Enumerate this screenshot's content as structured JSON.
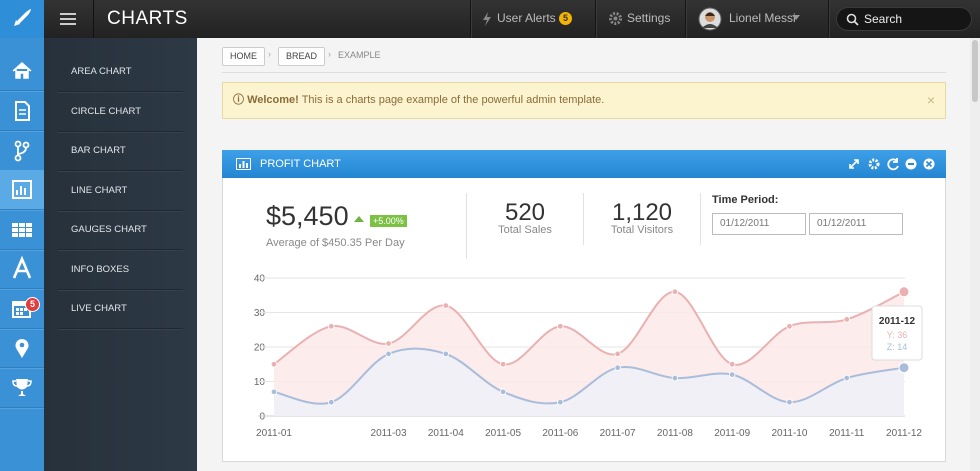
{
  "topbar": {
    "title": "CHARTS",
    "alerts": "User Alerts",
    "alerts_badge": "5",
    "settings": "Settings",
    "user": "Lionel Messi",
    "search": "Search"
  },
  "iconbar": {
    "calendar_badge": "5"
  },
  "sidebar": {
    "items": [
      "AREA CHART",
      "CIRCLE CHART",
      "BAR CHART",
      "LINE CHART",
      "GAUGES CHART",
      "INFO BOXES",
      "LIVE CHART"
    ]
  },
  "breadcrumb": [
    "HOME",
    "BREAD",
    "EXAMPLE"
  ],
  "alert": {
    "strong": "Welcome!",
    "text": "This is a charts page example of the powerful admin template.",
    "close": "×"
  },
  "panel": {
    "title": "PROFIT CHART",
    "profit": "$5,450",
    "change": "+5.00%",
    "profit_note": "Average of $450.35 Per Day",
    "sales": "520",
    "sales_label": "Total Sales",
    "visitors": "1,120",
    "visitors_label": "Total Visitors",
    "period_label": "Time Period:",
    "date_from": "01/12/2011",
    "date_to": "01/12/2011"
  },
  "chart_data": {
    "type": "area",
    "categories": [
      "2011-01",
      null,
      "2011-03",
      "2011-04",
      "2011-05",
      "2011-06",
      "2011-07",
      "2011-08",
      "2011-09",
      "2011-10",
      "2011-11",
      "2011-12"
    ],
    "series": [
      {
        "name": "Y",
        "color": "#e9b1b1",
        "fill": "#fbe9e9",
        "values": [
          15,
          26,
          21,
          32,
          15,
          26,
          18,
          36,
          15,
          26,
          28,
          36
        ]
      },
      {
        "name": "Z",
        "color": "#a9bddb",
        "fill": "#edf1f8",
        "values": [
          7,
          4,
          18,
          18,
          7,
          4,
          14,
          11,
          12,
          4,
          11,
          14
        ]
      }
    ],
    "ylim": [
      0,
      40
    ],
    "yticks": [
      0,
      10,
      20,
      30,
      40
    ],
    "grid": true,
    "tooltip": {
      "title": "2011-12",
      "items": [
        "Y: 36",
        "Z: 14"
      ]
    }
  }
}
